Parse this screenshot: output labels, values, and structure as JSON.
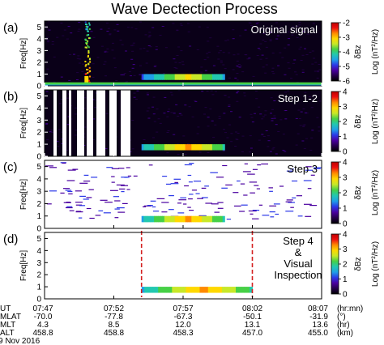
{
  "figure": {
    "title": "Wave Dectection Process",
    "date": "9 Nov 2016"
  },
  "colors": {
    "background": "#0a0018",
    "marker_line": "#d42020",
    "colormap": [
      "#000000",
      "#24004a",
      "#4a00a0",
      "#2b38e8",
      "#1f9fe8",
      "#22c8b0",
      "#46d046",
      "#c8e828",
      "#ffd800",
      "#ff8a00",
      "#ee1010",
      "#c00000"
    ]
  },
  "chart_data": [
    {
      "type": "heatmap",
      "panel_label": "(a)",
      "panel_text": [
        "Original signal"
      ],
      "ylabel": "Freq[Hz]",
      "yticks": [
        0,
        1,
        2,
        3,
        4,
        5
      ],
      "ylim": [
        0,
        5.5
      ],
      "xlim": [
        "07:47",
        "08:07"
      ],
      "colorbar": {
        "label": "Log (nT²/Hz)",
        "symbol": "δBz",
        "range": [
          -6,
          -2
        ],
        "ticks": [
          -2,
          -3,
          -4,
          -5,
          -6
        ]
      },
      "features": [
        {
          "kind": "vertical-burst",
          "time": "07:50",
          "freq_range": [
            0,
            5.5
          ],
          "intensity": "high"
        },
        {
          "kind": "low-frequency-band",
          "time_range": [
            "07:47",
            "08:07"
          ],
          "freq_range": [
            0,
            0.3
          ],
          "intensity": "high"
        },
        {
          "kind": "emission-band",
          "time_range": [
            "07:54",
            "08:00"
          ],
          "freq_range": [
            0.5,
            1.0
          ],
          "intensity": "medium"
        }
      ]
    },
    {
      "type": "heatmap",
      "panel_label": "(b)",
      "panel_text": [
        "Step 1-2"
      ],
      "ylabel": "Freq[Hz]",
      "yticks": [
        0,
        1,
        2,
        3,
        4,
        5
      ],
      "ylim": [
        0,
        5.5
      ],
      "xlim": [
        "07:47",
        "08:07"
      ],
      "colorbar": {
        "label": "Log (nT²/Hz)",
        "symbol": "δBz",
        "range": [
          0,
          4
        ],
        "ticks": [
          4,
          3,
          2,
          1,
          0
        ]
      },
      "features": [
        {
          "kind": "masked-intervals",
          "intensity": "removed"
        },
        {
          "kind": "emission-band",
          "time_range": [
            "07:54",
            "08:00"
          ],
          "freq_range": [
            0.5,
            1.0
          ],
          "intensity": "high"
        }
      ]
    },
    {
      "type": "heatmap",
      "panel_label": "(c)",
      "panel_text": [
        "Step 3"
      ],
      "ylabel": "Freq[Hz]",
      "yticks": [
        0,
        1,
        2,
        3,
        4,
        5
      ],
      "ylim": [
        0,
        5.5
      ],
      "xlim": [
        "07:47",
        "08:07"
      ],
      "colorbar": {
        "label": "Log (nT²/Hz)",
        "symbol": "δBz",
        "range": [
          0,
          4
        ],
        "ticks": [
          4,
          3,
          2,
          1,
          0
        ]
      },
      "features": [
        {
          "kind": "scattered-pixels",
          "intensity": "low"
        },
        {
          "kind": "emission-band",
          "time_range": [
            "07:54",
            "08:00"
          ],
          "freq_range": [
            0.5,
            1.0
          ],
          "intensity": "high"
        }
      ]
    },
    {
      "type": "heatmap",
      "panel_label": "(d)",
      "panel_text": [
        "Step 4",
        "&",
        "Visual",
        "Inspection"
      ],
      "ylabel": "Freq[Hz]",
      "yticks": [
        0,
        1,
        2,
        3,
        4,
        5
      ],
      "ylim": [
        0,
        5.5
      ],
      "xlim": [
        "07:47",
        "08:07"
      ],
      "colorbar": {
        "label": "Log (nT²/Hz)",
        "symbol": "δBz",
        "range": [
          0,
          4
        ],
        "ticks": [
          4,
          3,
          2,
          1,
          0
        ]
      },
      "markers": [
        {
          "kind": "dashed-vertical",
          "time": "07:54"
        },
        {
          "kind": "dashed-vertical",
          "time": "08:02"
        }
      ],
      "features": [
        {
          "kind": "emission-band",
          "time_range": [
            "07:54",
            "08:02"
          ],
          "freq_range": [
            0.5,
            1.0
          ],
          "intensity": "high"
        }
      ]
    }
  ],
  "xaxis_table": {
    "rows": [
      {
        "label": "UT",
        "unit": "(hr:mn)",
        "values": [
          "07:47",
          "07:52",
          "07:57",
          "08:02",
          "08:07"
        ]
      },
      {
        "label": "MLAT",
        "unit": "(°)",
        "values": [
          "-70.0",
          "-77.8",
          "-67.3",
          "-50.1",
          "-31.9"
        ]
      },
      {
        "label": "MLT",
        "unit": "(hr)",
        "values": [
          "4.3",
          "8.5",
          "12.0",
          "13.1",
          "13.6"
        ]
      },
      {
        "label": "ALT",
        "unit": "(km)",
        "values": [
          "458.8",
          "458.8",
          "458.3",
          "457.0",
          "455.0"
        ]
      }
    ]
  }
}
